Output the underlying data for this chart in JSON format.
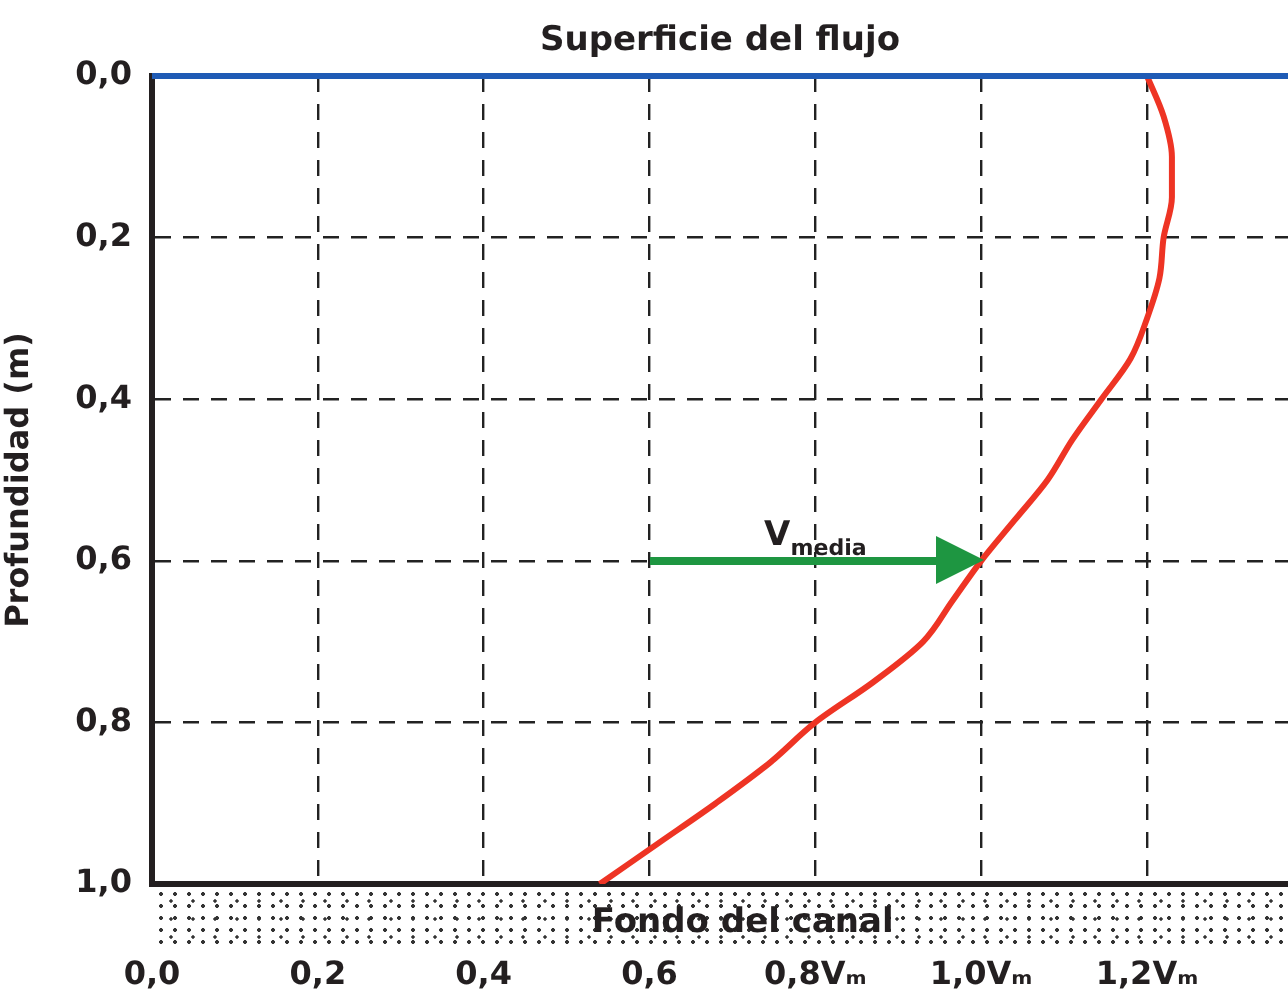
{
  "chart_data": {
    "type": "line",
    "ylabel": "Profundidad (m)",
    "xlim": [
      0,
      1.37
    ],
    "ylim": [
      1.0,
      0.0
    ],
    "xticks": [
      {
        "value": 0,
        "label": "0,0"
      },
      {
        "value": 0.2,
        "label": "0,2"
      },
      {
        "value": 0.4,
        "label": "0,4"
      },
      {
        "value": 0.6,
        "label": "0,6"
      },
      {
        "value": 0.8,
        "label": "0,8Vₘ"
      },
      {
        "value": 1.0,
        "label": "1,0Vₘ"
      },
      {
        "value": 1.2,
        "label": "1,2Vₘ"
      }
    ],
    "yticks": [
      {
        "value": 0,
        "label": "0,0"
      },
      {
        "value": 0.2,
        "label": "0,2"
      },
      {
        "value": 0.4,
        "label": "0,4"
      },
      {
        "value": 0.6,
        "label": "0,6"
      },
      {
        "value": 0.8,
        "label": "0,8"
      },
      {
        "value": 1.0,
        "label": "1,0"
      }
    ],
    "series": [
      {
        "color": "#ee3424",
        "x": [
          1.2,
          1.22,
          1.23,
          1.23,
          1.22,
          1.215,
          1.2,
          1.18,
          1.145,
          1.11,
          1.08,
          1.04,
          1.0,
          0.965,
          0.93,
          0.87,
          0.8,
          0.745,
          0.68,
          0.61,
          0.54
        ],
        "values": [
          0,
          0.05,
          0.1,
          0.15,
          0.2,
          0.25,
          0.3,
          0.35,
          0.4,
          0.45,
          0.5,
          0.55,
          0.6,
          0.65,
          0.7,
          0.75,
          0.8,
          0.85,
          0.9,
          0.95,
          1.0
        ]
      }
    ],
    "ref_lines": [
      {
        "axis": "y",
        "value": 0,
        "label": "Superficie del flujo",
        "color": "#1f5bb5"
      }
    ],
    "annotations": [
      "Fondo del canal",
      "V$_{media}$"
    ],
    "grid": true,
    "legend": false,
    "marker": "none",
    "line_style": "solid"
  }
}
